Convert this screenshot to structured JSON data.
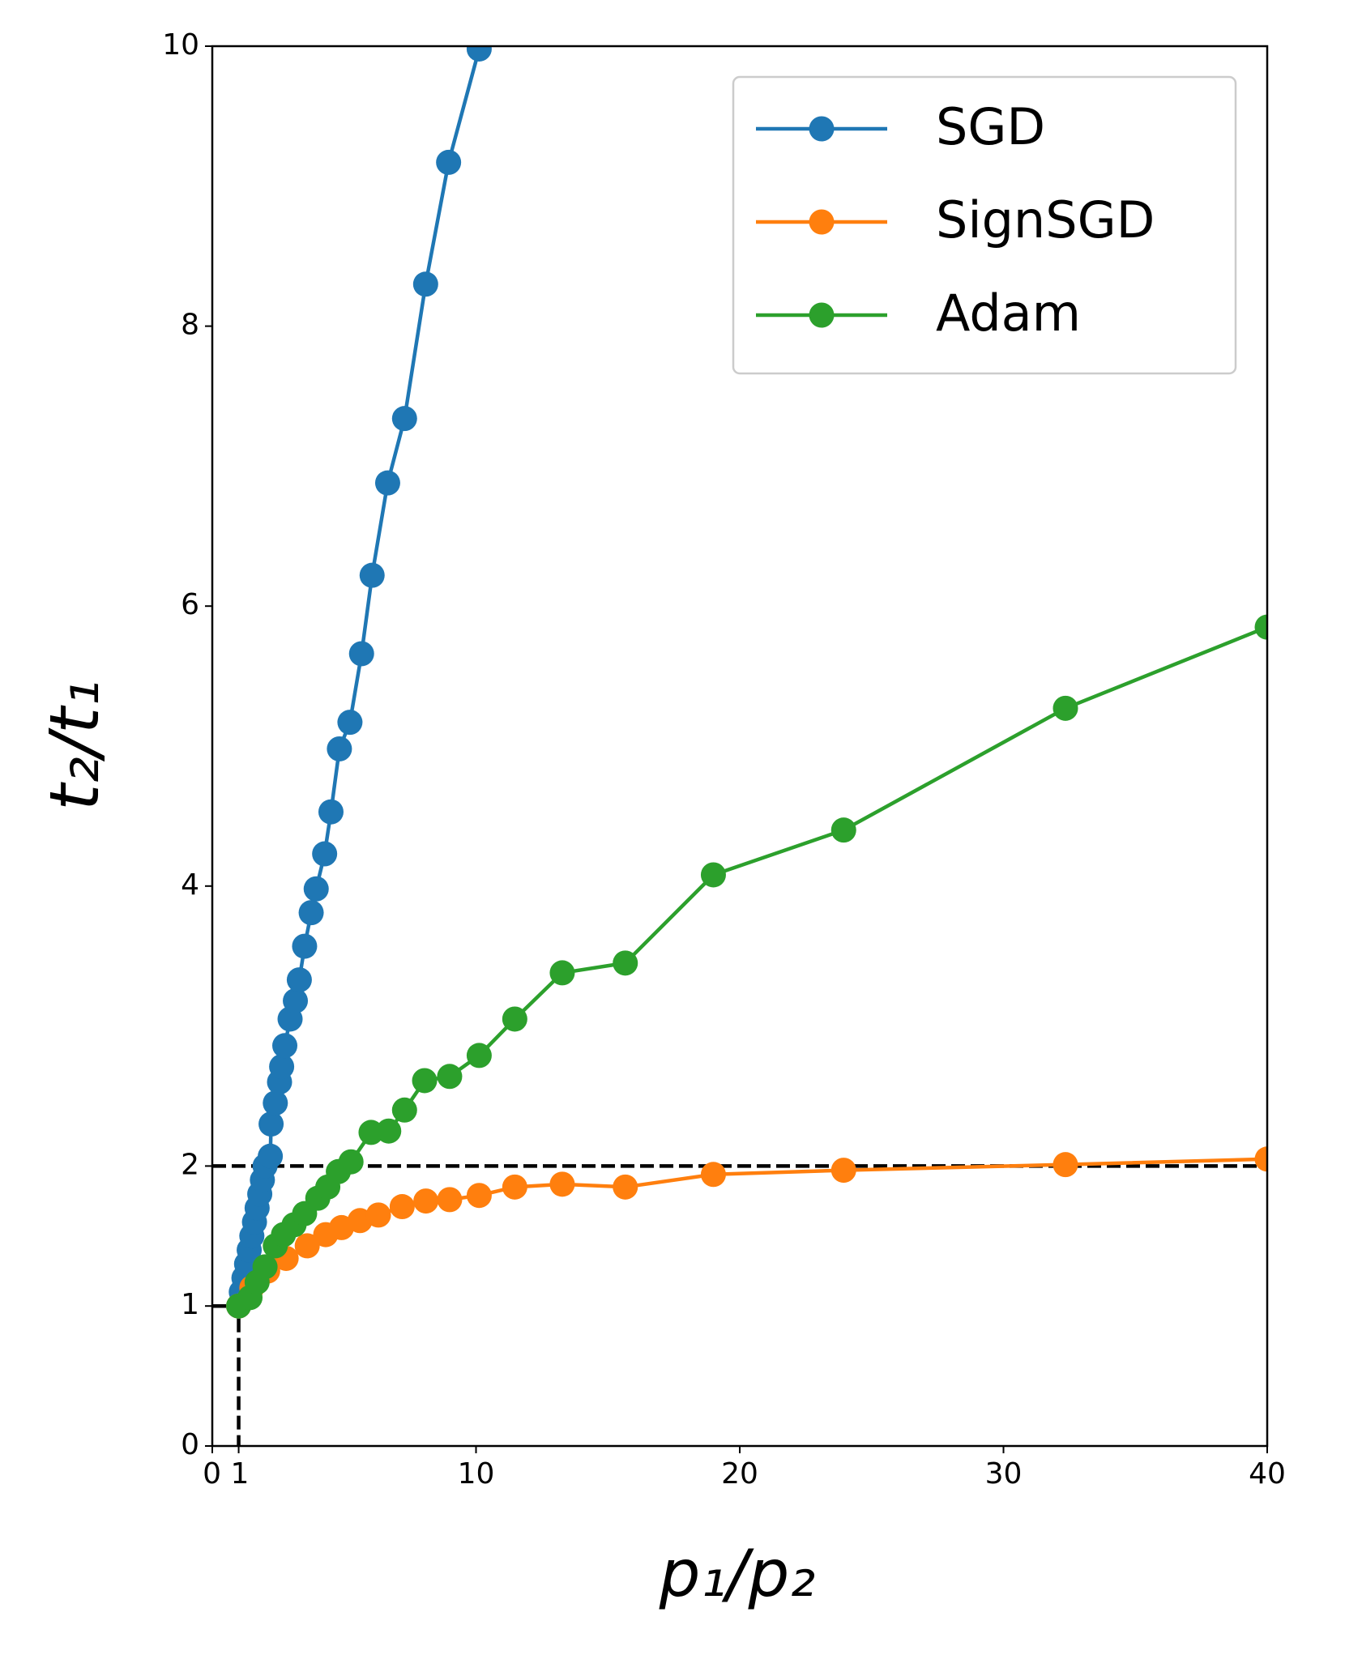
{
  "chart_data": {
    "type": "line",
    "xlabel": "p₁/p₂",
    "ylabel": "t₂/t₁",
    "xlim": [
      0,
      40
    ],
    "ylim": [
      0,
      10
    ],
    "xticks": [
      0,
      1,
      10,
      20,
      30,
      40
    ],
    "yticks": [
      0,
      1,
      2,
      4,
      6,
      8,
      10
    ],
    "legend": "upper right",
    "reference_lines": [
      {
        "y": 2
      },
      {
        "x": 1,
        "y": 1
      }
    ],
    "series": [
      {
        "name": "SGD",
        "color": "#1f77b4",
        "x": [
          1.0,
          1.1,
          1.2,
          1.3,
          1.4,
          1.5,
          1.6,
          1.7,
          1.8,
          1.9,
          2.0,
          2.2,
          2.23,
          2.39,
          2.55,
          2.63,
          2.75,
          2.95,
          3.15,
          3.3,
          3.5,
          3.75,
          3.94,
          4.26,
          4.5,
          4.82,
          5.22,
          5.66,
          6.06,
          6.65,
          7.29,
          8.09,
          8.96,
          10.12
        ],
        "values": [
          1.0,
          1.1,
          1.2,
          1.3,
          1.4,
          1.5,
          1.6,
          1.7,
          1.8,
          1.9,
          2.0,
          2.07,
          2.3,
          2.45,
          2.6,
          2.71,
          2.86,
          3.05,
          3.18,
          3.33,
          3.57,
          3.81,
          3.98,
          4.23,
          4.53,
          4.98,
          5.17,
          5.66,
          6.22,
          6.88,
          7.34,
          8.3,
          9.17,
          9.98
        ]
      },
      {
        "name": "SignSGD",
        "color": "#ff7f0e",
        "x": [
          1.0,
          1.5,
          2.1,
          2.8,
          3.6,
          4.3,
          4.9,
          5.6,
          6.3,
          7.2,
          8.1,
          9.0,
          10.12,
          11.47,
          13.27,
          15.66,
          19.0,
          23.94,
          32.35,
          40
        ],
        "values": [
          1.0,
          1.13,
          1.25,
          1.34,
          1.43,
          1.51,
          1.56,
          1.61,
          1.65,
          1.71,
          1.75,
          1.76,
          1.79,
          1.85,
          1.87,
          1.85,
          1.94,
          1.97,
          2.01,
          2.05
        ]
      },
      {
        "name": "Adam",
        "color": "#2ca02c",
        "x": [
          1.0,
          1.43,
          1.7,
          2.0,
          2.39,
          2.7,
          3.1,
          3.5,
          4.0,
          4.38,
          4.78,
          5.26,
          6.02,
          6.69,
          7.29,
          8.05,
          9.0,
          10.12,
          11.47,
          13.27,
          15.66,
          19.0,
          23.94,
          32.35,
          40
        ],
        "values": [
          1.0,
          1.06,
          1.17,
          1.28,
          1.43,
          1.51,
          1.58,
          1.66,
          1.77,
          1.85,
          1.96,
          2.03,
          2.24,
          2.25,
          2.4,
          2.61,
          2.64,
          2.79,
          3.05,
          3.38,
          3.45,
          4.08,
          4.4,
          5.27,
          5.85
        ]
      }
    ]
  }
}
